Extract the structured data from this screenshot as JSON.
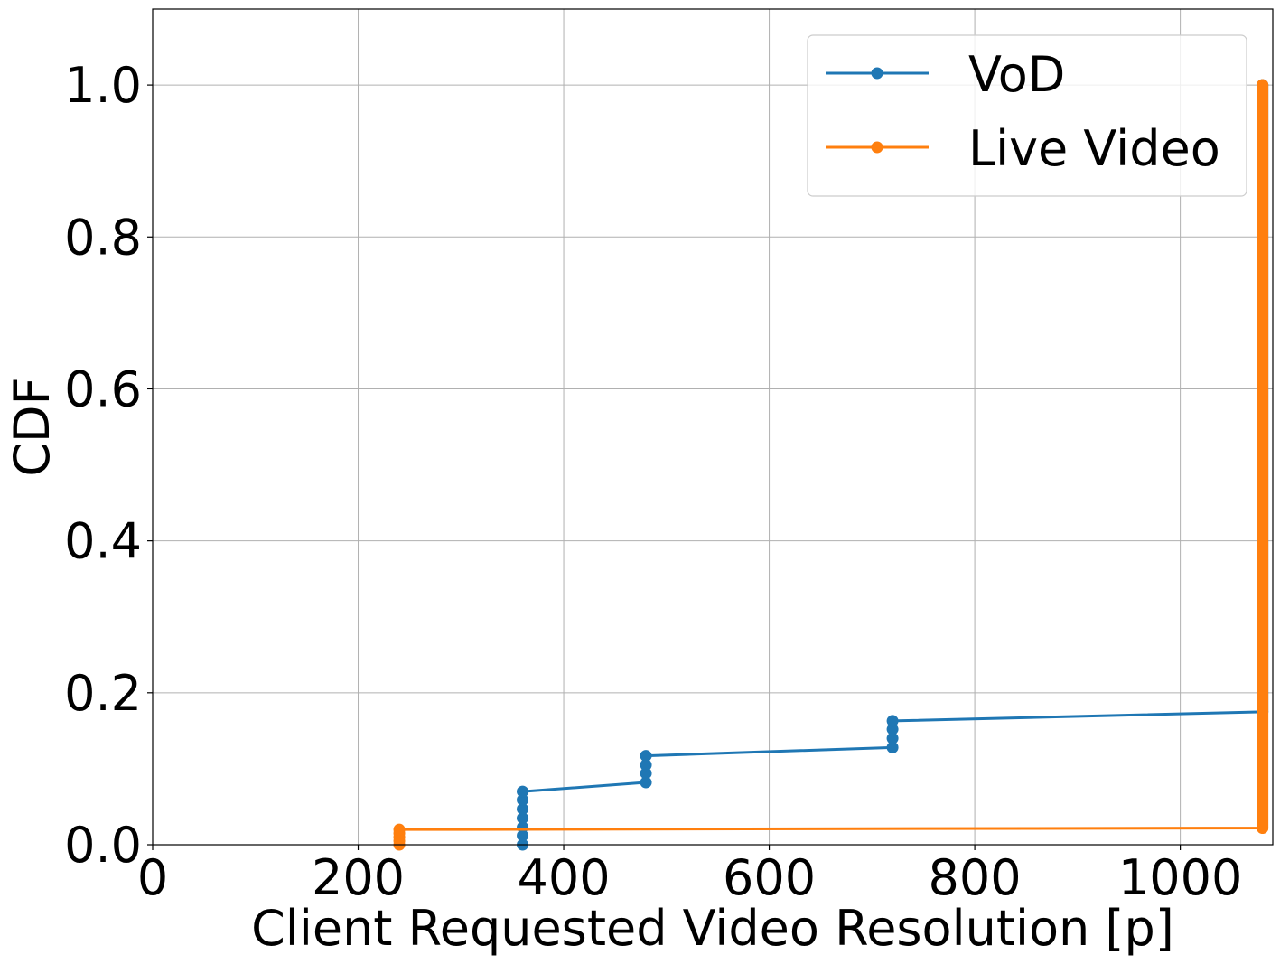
{
  "chart_data": {
    "type": "line",
    "xlabel": "Client Requested Video Resolution [p]",
    "ylabel": "CDF",
    "xlim": [
      0,
      1090
    ],
    "ylim": [
      0,
      1.1
    ],
    "x_ticks": [
      0,
      200,
      400,
      600,
      800,
      1000
    ],
    "x_tick_labels": [
      "0",
      "200",
      "400",
      "600",
      "800",
      "1000"
    ],
    "y_ticks": [
      0.0,
      0.2,
      0.4,
      0.6,
      0.8,
      1.0
    ],
    "y_tick_labels": [
      "0.0",
      "0.2",
      "0.4",
      "0.6",
      "0.8",
      "1.0"
    ],
    "grid": true,
    "legend_position": "top-right",
    "series": [
      {
        "name": "VoD",
        "color": "#1f77b4",
        "marker": "circle",
        "points": [
          [
            360,
            0.0
          ],
          [
            360,
            0.012
          ],
          [
            360,
            0.023
          ],
          [
            360,
            0.035
          ],
          [
            360,
            0.047
          ],
          [
            360,
            0.059
          ],
          [
            360,
            0.07
          ],
          [
            480,
            0.082
          ],
          [
            480,
            0.094
          ],
          [
            480,
            0.105
          ],
          [
            480,
            0.117
          ],
          [
            720,
            0.128
          ],
          [
            720,
            0.14
          ],
          [
            720,
            0.152
          ],
          [
            720,
            0.163
          ],
          [
            1080,
            0.175
          ],
          [
            1080,
            1.0
          ]
        ]
      },
      {
        "name": "Live Video",
        "color": "#ff7f0e",
        "marker": "circle",
        "points": [
          [
            240,
            0.0
          ],
          [
            240,
            0.005
          ],
          [
            240,
            0.01
          ],
          [
            240,
            0.015
          ],
          [
            240,
            0.02
          ],
          [
            1080,
            0.022
          ],
          [
            1080,
            1.0
          ]
        ]
      }
    ]
  }
}
